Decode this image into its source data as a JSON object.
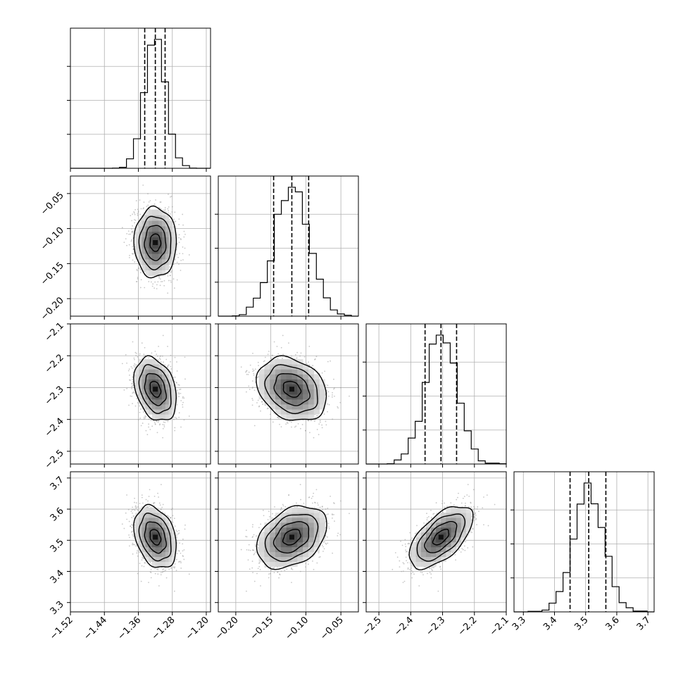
{
  "chart_data": {
    "type": "corner",
    "grid": true,
    "n_params": 4,
    "params": [
      {
        "range": [
          -1.52,
          -1.19
        ],
        "ticks": [
          -1.52,
          -1.44,
          -1.36,
          -1.28,
          -1.2
        ],
        "tick_labels": [
          "−1.52",
          "−1.44",
          "−1.36",
          "−1.28",
          "−1.20"
        ],
        "mean": -1.32,
        "std": 0.025,
        "quantiles": [
          -1.345,
          -1.32,
          -1.297
        ]
      },
      {
        "range": [
          -0.225,
          -0.025
        ],
        "ticks": [
          -0.2,
          -0.15,
          -0.1,
          -0.05
        ],
        "tick_labels": [
          "−0.20",
          "−0.15",
          "−0.10",
          "−0.05"
        ],
        "mean": -0.12,
        "std": 0.025,
        "quantiles": [
          -0.146,
          -0.12,
          -0.096
        ]
      },
      {
        "range": [
          -2.54,
          -2.1
        ],
        "ticks": [
          -2.5,
          -2.4,
          -2.3,
          -2.2,
          -2.1
        ],
        "tick_labels": [
          "−2.5",
          "−2.4",
          "−2.3",
          "−2.2",
          "−2.1"
        ],
        "mean": -2.305,
        "std": 0.05,
        "quantiles": [
          -2.355,
          -2.305,
          -2.256
        ]
      },
      {
        "range": [
          3.27,
          3.72
        ],
        "ticks": [
          3.3,
          3.4,
          3.5,
          3.6,
          3.7
        ],
        "tick_labels": [
          "3.3",
          "3.4",
          "3.5",
          "3.6",
          "3.7"
        ],
        "mean": 3.51,
        "std": 0.05,
        "quantiles": [
          3.45,
          3.51,
          3.565
        ]
      }
    ],
    "correlations": [
      [
        0,
        1,
        0.0
      ],
      [
        0,
        2,
        -0.3
      ],
      [
        1,
        2,
        -0.25
      ],
      [
        0,
        3,
        -0.3
      ],
      [
        1,
        3,
        0.35
      ],
      [
        2,
        3,
        0.6
      ]
    ]
  }
}
